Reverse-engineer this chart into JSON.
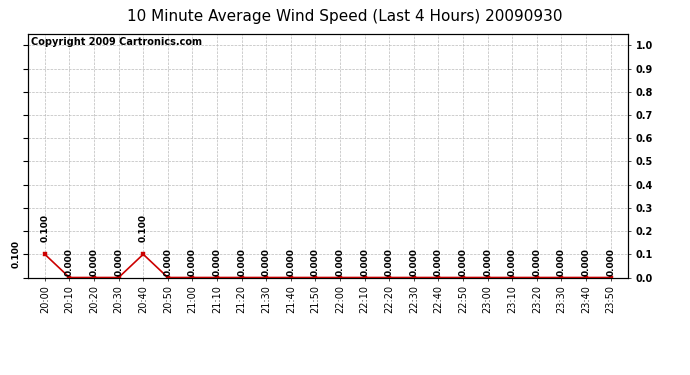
{
  "title": "10 Minute Average Wind Speed (Last 4 Hours) 20090930",
  "copyright_text": "Copyright 2009 Cartronics.com",
  "x_labels": [
    "20:00",
    "20:10",
    "20:20",
    "20:30",
    "20:40",
    "20:50",
    "21:00",
    "21:10",
    "21:20",
    "21:30",
    "21:40",
    "21:50",
    "22:00",
    "22:10",
    "22:20",
    "22:30",
    "22:40",
    "22:50",
    "23:00",
    "23:10",
    "23:20",
    "23:30",
    "23:40",
    "23:50"
  ],
  "y_values": [
    0.1,
    0.0,
    0.0,
    0.0,
    0.1,
    0.0,
    0.0,
    0.0,
    0.0,
    0.0,
    0.0,
    0.0,
    0.0,
    0.0,
    0.0,
    0.0,
    0.0,
    0.0,
    0.0,
    0.0,
    0.0,
    0.0,
    0.0,
    0.0
  ],
  "line_color": "#cc0000",
  "marker_color": "#cc0000",
  "background_color": "#ffffff",
  "plot_bg_color": "#ffffff",
  "grid_color": "#bbbbbb",
  "ylim": [
    0.0,
    1.05
  ],
  "yticks": [
    0.0,
    0.1,
    0.2,
    0.3,
    0.4,
    0.5,
    0.6,
    0.7,
    0.8,
    0.9,
    1.0
  ],
  "title_fontsize": 11,
  "copyright_fontsize": 7,
  "label_fontsize": 6.5,
  "tick_fontsize": 7,
  "marker_size": 2.5,
  "line_width": 1.2
}
